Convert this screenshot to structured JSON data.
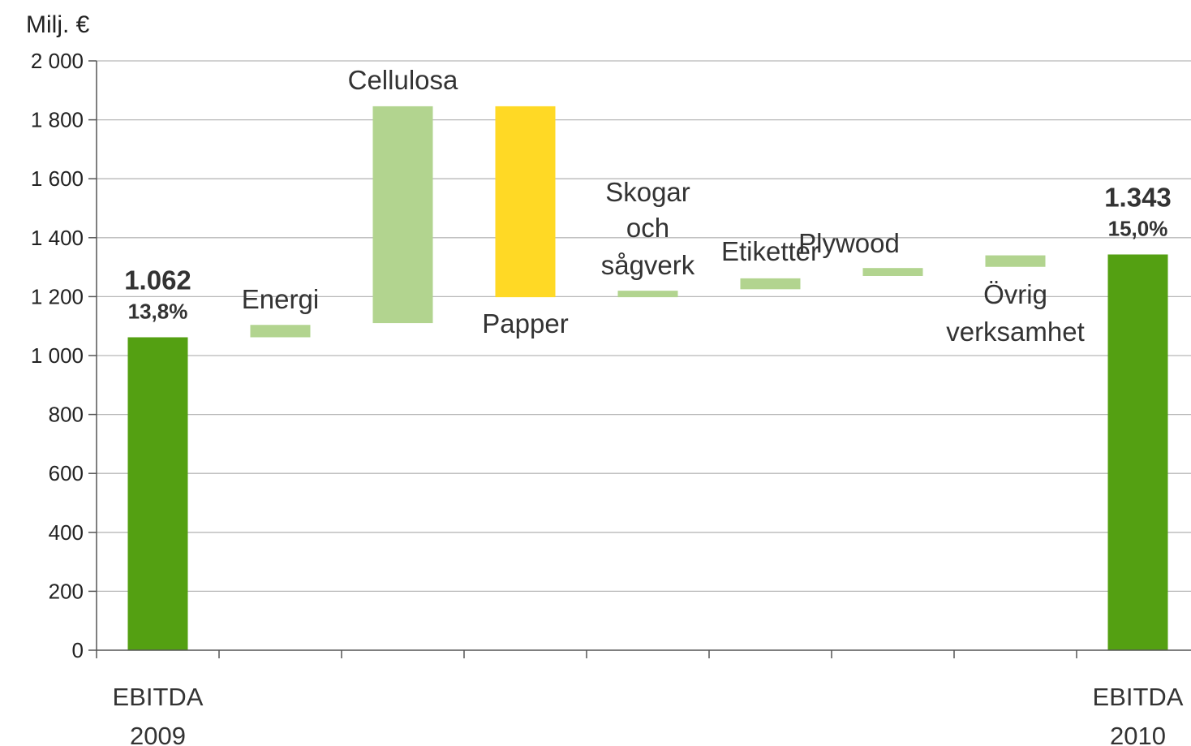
{
  "chart_data": {
    "type": "bar",
    "subtype": "waterfall",
    "unit_label": "Milj. €",
    "ylim": [
      0,
      2000
    ],
    "y_ticks": [
      "0",
      "200",
      "400",
      "600",
      "800",
      "1 000",
      "1 200",
      "1 400",
      "1 600",
      "1 800",
      "2 000"
    ],
    "grid": true,
    "categories": [
      "EBITDA 2009",
      "Energi",
      "Cellulosa",
      "Papper",
      "Skogar och sågverk",
      "Etiketter",
      "Plywood",
      "Övrig verksamhet",
      "EBITDA 2010"
    ],
    "bars": [
      {
        "category": "EBITDA 2009",
        "kind": "total",
        "start": 0,
        "end": 1062,
        "color": "#54a012",
        "value_label": "1.062",
        "pct_label": "13,8%"
      },
      {
        "category": "Energi",
        "kind": "delta",
        "start": 1062,
        "end": 1104,
        "color": "#b2d48f",
        "segment_label": "Energi"
      },
      {
        "category": "Cellulosa",
        "kind": "delta",
        "start": 1110,
        "end": 1846,
        "color": "#b2d48f",
        "segment_label": "Cellulosa"
      },
      {
        "category": "Papper",
        "kind": "delta",
        "start": 1846,
        "end": 1198,
        "color": "#ffd925",
        "segment_label": "Papper"
      },
      {
        "category": "Skogar och sågverk",
        "kind": "delta",
        "start": 1198,
        "end": 1220,
        "color": "#b2d48f",
        "segment_label_lines": [
          "Skogar",
          "och",
          "sågverk"
        ]
      },
      {
        "category": "Etiketter",
        "kind": "delta",
        "start": 1225,
        "end": 1262,
        "color": "#b2d48f",
        "segment_label": "Etiketter"
      },
      {
        "category": "Plywood",
        "kind": "delta",
        "start": 1270,
        "end": 1297,
        "color": "#b2d48f",
        "segment_label": "Plywood"
      },
      {
        "category": "Övrig verksamhet",
        "kind": "delta",
        "start": 1301,
        "end": 1340,
        "color": "#b2d48f",
        "segment_label_lines": [
          "Övrig",
          "verksamhet"
        ]
      },
      {
        "category": "EBITDA 2010",
        "kind": "total",
        "start": 0,
        "end": 1343,
        "color": "#54a012",
        "value_label": "1.343",
        "pct_label": "15,0%"
      }
    ],
    "x_tick_labels": [
      {
        "lines": [
          "EBITDA",
          "2009"
        ]
      },
      {
        "lines": [
          "EBITDA",
          "2010"
        ]
      }
    ]
  }
}
